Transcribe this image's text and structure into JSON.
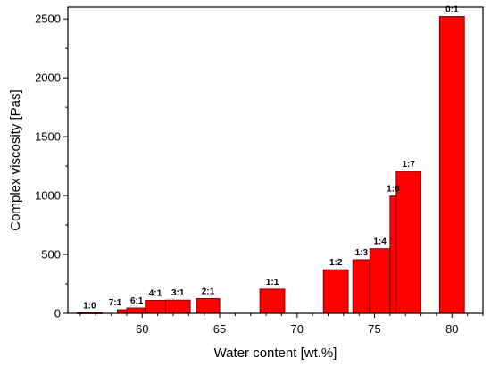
{
  "chart_data": {
    "type": "bar",
    "title": "",
    "xlabel": "Water content [wt.%]",
    "ylabel": "Complex viscosity [Pas]",
    "xlim": [
      55.2,
      82.0
    ],
    "ylim": [
      0,
      2600
    ],
    "x_ticks": [
      60,
      65,
      70,
      75,
      80
    ],
    "y_ticks": [
      0,
      500,
      1000,
      1500,
      2000,
      2500
    ],
    "grid": false,
    "bar_color": "#ff0000",
    "bar_edge_color": "#7a0000",
    "bars": [
      {
        "label": "1:0",
        "x_start": 55.8,
        "x_end": 57.4,
        "value": 5,
        "label_offset": 0
      },
      {
        "label": "7:1",
        "x_start": 58.4,
        "x_end": 59.0,
        "value": 30,
        "label_offset": -0.45
      },
      {
        "label": "6:1",
        "x_start": 59.0,
        "x_end": 60.2,
        "value": 45,
        "label_offset": 0.05
      },
      {
        "label": "4:1",
        "x_start": 60.2,
        "x_end": 61.5,
        "value": 110,
        "label_offset": 0
      },
      {
        "label": "3:1",
        "x_start": 61.5,
        "x_end": 63.1,
        "value": 112,
        "label_offset": 0
      },
      {
        "label": "2:1",
        "x_start": 63.5,
        "x_end": 65.0,
        "value": 125,
        "label_offset": 0
      },
      {
        "label": "1:1",
        "x_start": 67.6,
        "x_end": 69.2,
        "value": 205,
        "label_offset": 0
      },
      {
        "label": "1:2",
        "x_start": 71.7,
        "x_end": 73.3,
        "value": 370,
        "label_offset": 0
      },
      {
        "label": "1:3",
        "x_start": 73.6,
        "x_end": 74.7,
        "value": 455,
        "label_offset": 0
      },
      {
        "label": "1:4",
        "x_start": 74.7,
        "x_end": 76.0,
        "value": 548,
        "label_offset": 0
      },
      {
        "label": "1:6",
        "x_start": 76.0,
        "x_end": 76.4,
        "value": 995,
        "label_offset": 0
      },
      {
        "label": "1:7",
        "x_start": 76.4,
        "x_end": 78.0,
        "value": 1205,
        "label_offset": 0
      },
      {
        "label": "0:1",
        "x_start": 79.2,
        "x_end": 80.8,
        "value": 2520,
        "label_offset": 0
      }
    ]
  }
}
